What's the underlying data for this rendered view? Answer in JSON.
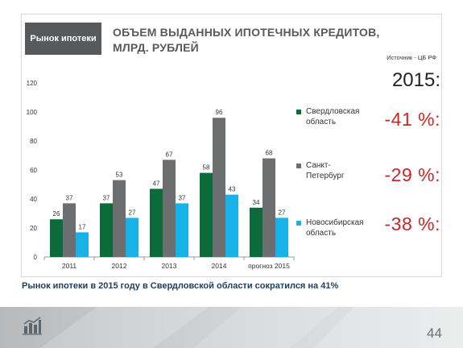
{
  "header": {
    "tag": "Рынок ипотеки",
    "title": "ОБЪЕМ ВЫДАННЫХ ИПОТЕЧНЫХ КРЕДИТОВ, МЛРД. РУБЛЕЙ",
    "source": "Источник - ЦБ РФ"
  },
  "summary": {
    "year": "2015",
    "colon": ":",
    "items": [
      {
        "value": "-41 %:",
        "color": "#c62828"
      },
      {
        "value": "-29 %:",
        "color": "#c62828"
      },
      {
        "value": "-38 %:",
        "color": "#c62828"
      }
    ]
  },
  "chart_data": {
    "type": "bar",
    "categories": [
      "2011",
      "2012",
      "2013",
      "2014",
      "прогноз 2015"
    ],
    "series": [
      {
        "name": "Свердловская область",
        "color": "#0b6b3a",
        "values": [
          26,
          37,
          47,
          58,
          34
        ]
      },
      {
        "name": "Санкт-Петербург",
        "color": "#6d6e70",
        "values": [
          37,
          53,
          67,
          96,
          68
        ]
      },
      {
        "name": "Новосибирская область",
        "color": "#17b3e8",
        "values": [
          17,
          27,
          37,
          43,
          27
        ]
      }
    ],
    "ylim": [
      0,
      120
    ],
    "yticks": [
      0,
      20,
      40,
      60,
      80,
      100,
      120
    ],
    "grid": false,
    "legend": "right",
    "data_labels": true
  },
  "footer": {
    "text": "Рынок ипотеки в 2015 году в Свердловской области сократился на 41%",
    "page": "44"
  }
}
